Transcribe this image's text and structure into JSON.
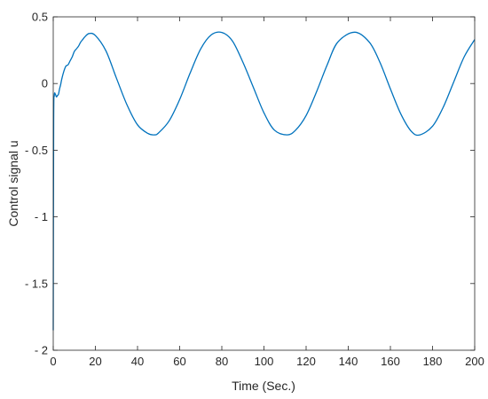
{
  "chart_data": {
    "type": "line",
    "xlabel": "Time (Sec.)",
    "ylabel": "Control signal u",
    "xlim": [
      0,
      200
    ],
    "ylim": [
      -2,
      0.5
    ],
    "xticks": [
      0,
      20,
      40,
      60,
      80,
      100,
      120,
      140,
      160,
      180,
      200
    ],
    "yticks": [
      -2,
      -1.5,
      -1,
      -0.5,
      0,
      0.5
    ],
    "xtick_labels": [
      "0",
      "20",
      "40",
      "60",
      "80",
      "100",
      "120",
      "140",
      "160",
      "180",
      "200"
    ],
    "ytick_labels": [
      "- 2",
      "- 1.5",
      "- 1",
      "- 0.5",
      "0",
      "0.5"
    ],
    "grid": false,
    "legend": "none",
    "series": [
      {
        "color": "#0072BD",
        "x": [
          0,
          0.2,
          0.5,
          1,
          1.5,
          2,
          2.5,
          3,
          3.5,
          4,
          5,
          6,
          7,
          8,
          9,
          10,
          11,
          12,
          13,
          14,
          15,
          17,
          20,
          25,
          30,
          35,
          40,
          45,
          48,
          50,
          55,
          60,
          65,
          70,
          75,
          80,
          85,
          90,
          95,
          100,
          105,
          111,
          115,
          120,
          125,
          130,
          135,
          143,
          150,
          155,
          160,
          165,
          170,
          174,
          180,
          185,
          190,
          195,
          200
        ],
        "y": [
          -1.85,
          -0.3,
          -0.09,
          -0.08,
          -0.1,
          -0.09,
          -0.08,
          -0.04,
          -0.01,
          0.03,
          0.09,
          0.13,
          0.14,
          0.17,
          0.2,
          0.24,
          0.26,
          0.28,
          0.31,
          0.33,
          0.35,
          0.375,
          0.36,
          0.245,
          0.04,
          -0.16,
          -0.31,
          -0.375,
          -0.385,
          -0.37,
          -0.28,
          -0.12,
          0.08,
          0.26,
          0.365,
          0.383,
          0.32,
          0.16,
          -0.03,
          -0.22,
          -0.35,
          -0.385,
          -0.35,
          -0.24,
          -0.06,
          0.14,
          0.31,
          0.385,
          0.31,
          0.16,
          -0.04,
          -0.23,
          -0.36,
          -0.385,
          -0.32,
          -0.18,
          0.01,
          0.2,
          0.33
        ]
      }
    ]
  }
}
